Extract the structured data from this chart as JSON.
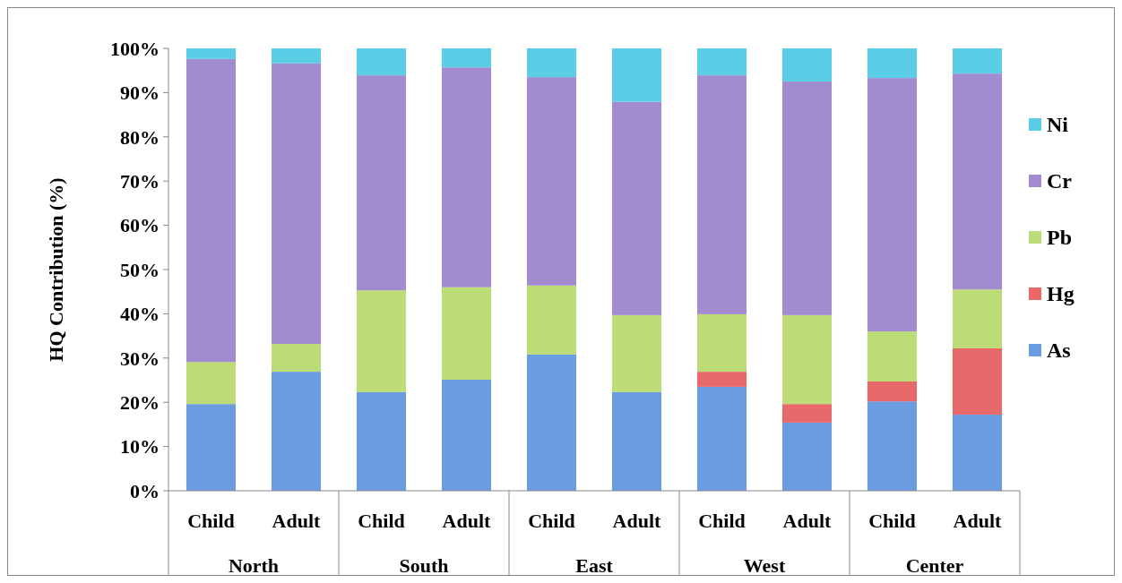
{
  "chart_data": {
    "type": "bar",
    "stacked": true,
    "ylabel": "HQ Contribution (%)",
    "categories": [
      "Child",
      "Adult",
      "Child",
      "Adult",
      "Child",
      "Adult",
      "Child",
      "Adult",
      "Child",
      "Adult"
    ],
    "annotations": [
      "North",
      "South",
      "East",
      "West",
      "Center"
    ],
    "ylim": [
      0,
      100
    ],
    "yticks": [
      {
        "value": 0,
        "label": "0%"
      },
      {
        "value": 10,
        "label": "10%"
      },
      {
        "value": 20,
        "label": "20%"
      },
      {
        "value": 30,
        "label": "30%"
      },
      {
        "value": 40,
        "label": "40%"
      },
      {
        "value": 50,
        "label": "50%"
      },
      {
        "value": 60,
        "label": "60%"
      },
      {
        "value": 70,
        "label": "70%"
      },
      {
        "value": 80,
        "label": "80%"
      },
      {
        "value": 90,
        "label": "90%"
      },
      {
        "value": 100,
        "label": "100%"
      }
    ],
    "legend": "right",
    "series": [
      {
        "name": "As",
        "color": "#6b9be0",
        "values": [
          19.6,
          26.9,
          22.3,
          25.1,
          30.8,
          22.3,
          23.5,
          15.4,
          20.2,
          17.2
        ]
      },
      {
        "name": "Hg",
        "color": "#e8696a",
        "values": [
          0,
          0,
          0,
          0,
          0,
          0,
          3.4,
          4.2,
          4.5,
          15.0
        ]
      },
      {
        "name": "Pb",
        "color": "#bcdc78",
        "values": [
          9.5,
          6.3,
          23.0,
          20.9,
          15.6,
          17.4,
          13.0,
          20.1,
          11.3,
          13.3
        ]
      },
      {
        "name": "Cr",
        "color": "#a28ccf",
        "values": [
          68.5,
          63.4,
          48.6,
          49.7,
          47.1,
          48.2,
          54.0,
          52.8,
          57.3,
          48.8
        ]
      },
      {
        "name": "Ni",
        "color": "#5ccde6",
        "values": [
          2.4,
          3.4,
          6.1,
          4.3,
          6.5,
          12.1,
          6.1,
          7.5,
          6.7,
          5.7
        ]
      }
    ]
  }
}
